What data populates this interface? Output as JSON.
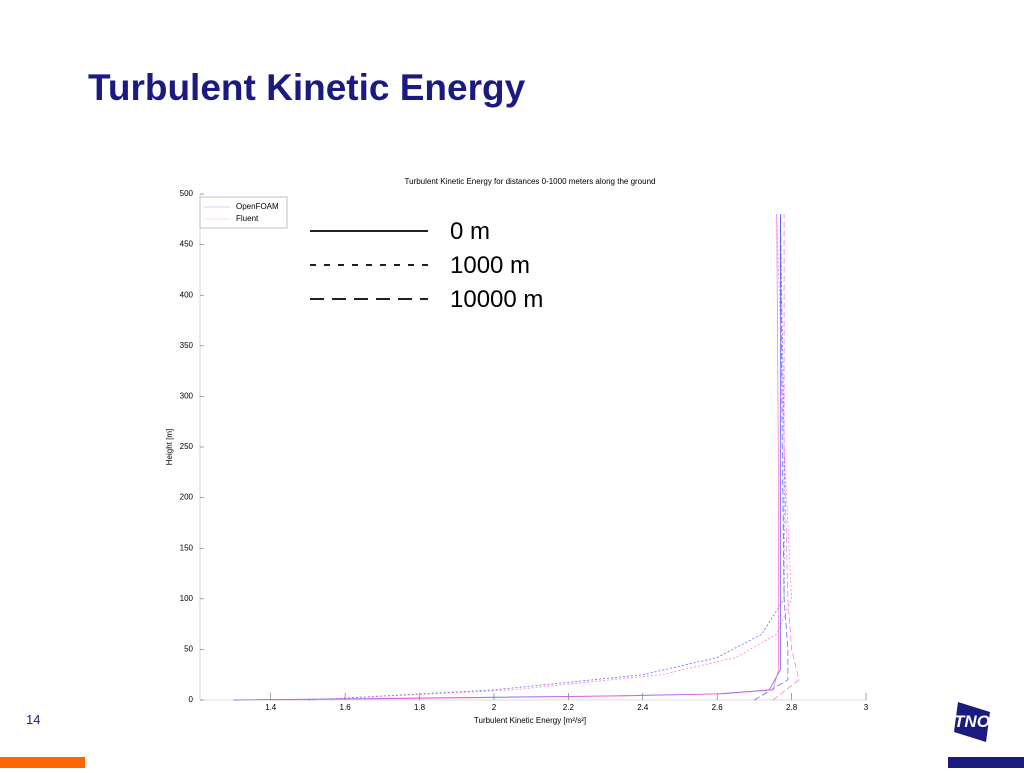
{
  "slide": {
    "title": "Turbulent Kinetic Energy",
    "page_number": "14",
    "logo": "TNO"
  },
  "chart_data": {
    "type": "line",
    "title": "Turbulent Kinetic Energy for distances 0-1000 meters along the ground",
    "x_label": "Turbulent Kinetic Energy [m²/s²]",
    "y_label": "Height [m]",
    "xlim": [
      1.21,
      3
    ],
    "ylim": [
      0,
      500
    ],
    "xticks": [
      1.4,
      1.6,
      1.8,
      2,
      2.2,
      2.4,
      2.6,
      2.8,
      3
    ],
    "yticks": [
      0,
      50,
      100,
      150,
      200,
      250,
      300,
      350,
      400,
      450,
      500
    ],
    "line_styles": [
      {
        "label": "0 m",
        "dash": "solid"
      },
      {
        "label": "1000 m",
        "dash": "dotted"
      },
      {
        "label": "10000 m",
        "dash": "dashed"
      }
    ],
    "series": [
      {
        "name": "OpenFOAM",
        "color": "#4d4dff",
        "profiles": [
          {
            "x": [
              1.3,
              1.8,
              2.3,
              2.6,
              2.74,
              2.77,
              2.77,
              2.77
            ],
            "y": [
              0,
              2,
              4,
              6,
              10,
              30,
              200,
              480
            ]
          },
          {
            "x": [
              1.5,
              2.0,
              2.4,
              2.6,
              2.72,
              2.78,
              2.78,
              2.77
            ],
            "y": [
              0,
              10,
              25,
              42,
              65,
              100,
              250,
              480
            ]
          },
          {
            "x": [
              2.7,
              2.79,
              2.79,
              2.78,
              2.775,
              2.77
            ],
            "y": [
              0,
              20,
              50,
              100,
              250,
              480
            ]
          }
        ]
      },
      {
        "name": "Fluent",
        "color": "#ff66cc",
        "profiles": [
          {
            "x": [
              1.4,
              1.9,
              2.35,
              2.62,
              2.75,
              2.765,
              2.765,
              2.76
            ],
            "y": [
              0,
              2,
              4,
              6,
              10,
              30,
              200,
              480
            ]
          },
          {
            "x": [
              1.5,
              2.05,
              2.45,
              2.65,
              2.76,
              2.8,
              2.78,
              2.76
            ],
            "y": [
              0,
              10,
              25,
              42,
              65,
              100,
              250,
              480
            ]
          },
          {
            "x": [
              2.75,
              2.82,
              2.8,
              2.79,
              2.78,
              2.78
            ],
            "y": [
              0,
              20,
              50,
              100,
              250,
              480
            ]
          }
        ]
      }
    ]
  }
}
